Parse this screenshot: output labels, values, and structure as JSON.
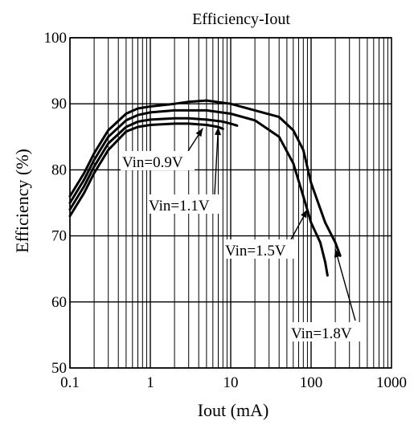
{
  "chart_data": {
    "type": "line",
    "title": "Efficiency-Iout",
    "xlabel": "Iout (mA)",
    "ylabel": "Efficiency (%)",
    "xscale": "log",
    "xlim": [
      0.1,
      1000
    ],
    "ylim": [
      50,
      100
    ],
    "xticks": [
      {
        "value": 0.1,
        "label": "0.1"
      },
      {
        "value": 1,
        "label": "1"
      },
      {
        "value": 10,
        "label": "10"
      },
      {
        "value": 100,
        "label": "100"
      },
      {
        "value": 1000,
        "label": "1000"
      }
    ],
    "yticks": [
      {
        "value": 50,
        "label": "50"
      },
      {
        "value": 60,
        "label": "60"
      },
      {
        "value": 70,
        "label": "70"
      },
      {
        "value": 80,
        "label": "80"
      },
      {
        "value": 90,
        "label": "90"
      },
      {
        "value": 100,
        "label": "100"
      }
    ],
    "grid": true,
    "series": [
      {
        "name": "Vin=0.9V",
        "x": [
          0.1,
          0.15,
          0.2,
          0.3,
          0.5,
          0.7,
          1,
          2,
          3,
          5,
          7,
          8
        ],
        "y": [
          73,
          76.5,
          79.5,
          83,
          85.8,
          86.5,
          86.8,
          87,
          87,
          86.8,
          86.5,
          86.2
        ]
      },
      {
        "name": "Vin=1.1V",
        "x": [
          0.1,
          0.15,
          0.2,
          0.3,
          0.5,
          0.7,
          1,
          2,
          3,
          5,
          8,
          10,
          12
        ],
        "y": [
          74,
          77.5,
          80.5,
          84,
          86.5,
          87.3,
          87.6,
          87.8,
          87.8,
          87.6,
          87.3,
          87,
          86.7
        ]
      },
      {
        "name": "Vin=1.5V",
        "x": [
          0.1,
          0.15,
          0.2,
          0.3,
          0.5,
          0.7,
          1,
          2,
          5,
          10,
          20,
          40,
          60,
          80,
          100,
          130,
          150,
          160
        ],
        "y": [
          75,
          78.5,
          81.5,
          85,
          87.5,
          88.3,
          88.7,
          89,
          89,
          88.5,
          87.5,
          85,
          81,
          76,
          72,
          69,
          66,
          64
        ]
      },
      {
        "name": "Vin=1.8V",
        "x": [
          0.1,
          0.15,
          0.2,
          0.3,
          0.5,
          0.7,
          1,
          2,
          3,
          5,
          10,
          20,
          40,
          60,
          80,
          100,
          150,
          200,
          230
        ],
        "y": [
          76,
          79.5,
          82.5,
          86,
          88.5,
          89.3,
          89.6,
          90,
          90.3,
          90.5,
          90,
          89,
          88,
          86,
          83,
          78,
          72,
          69,
          67
        ]
      }
    ],
    "annotations": [
      {
        "text": "Vin=0.9V",
        "x": 4.5,
        "y": 86.3
      },
      {
        "text": "Vin=1.1V",
        "x": 7,
        "y": 86.5
      },
      {
        "text": "Vin=1.5V",
        "x": 90,
        "y": 74
      },
      {
        "text": "Vin=1.8V",
        "x": 200,
        "y": 68
      }
    ]
  }
}
